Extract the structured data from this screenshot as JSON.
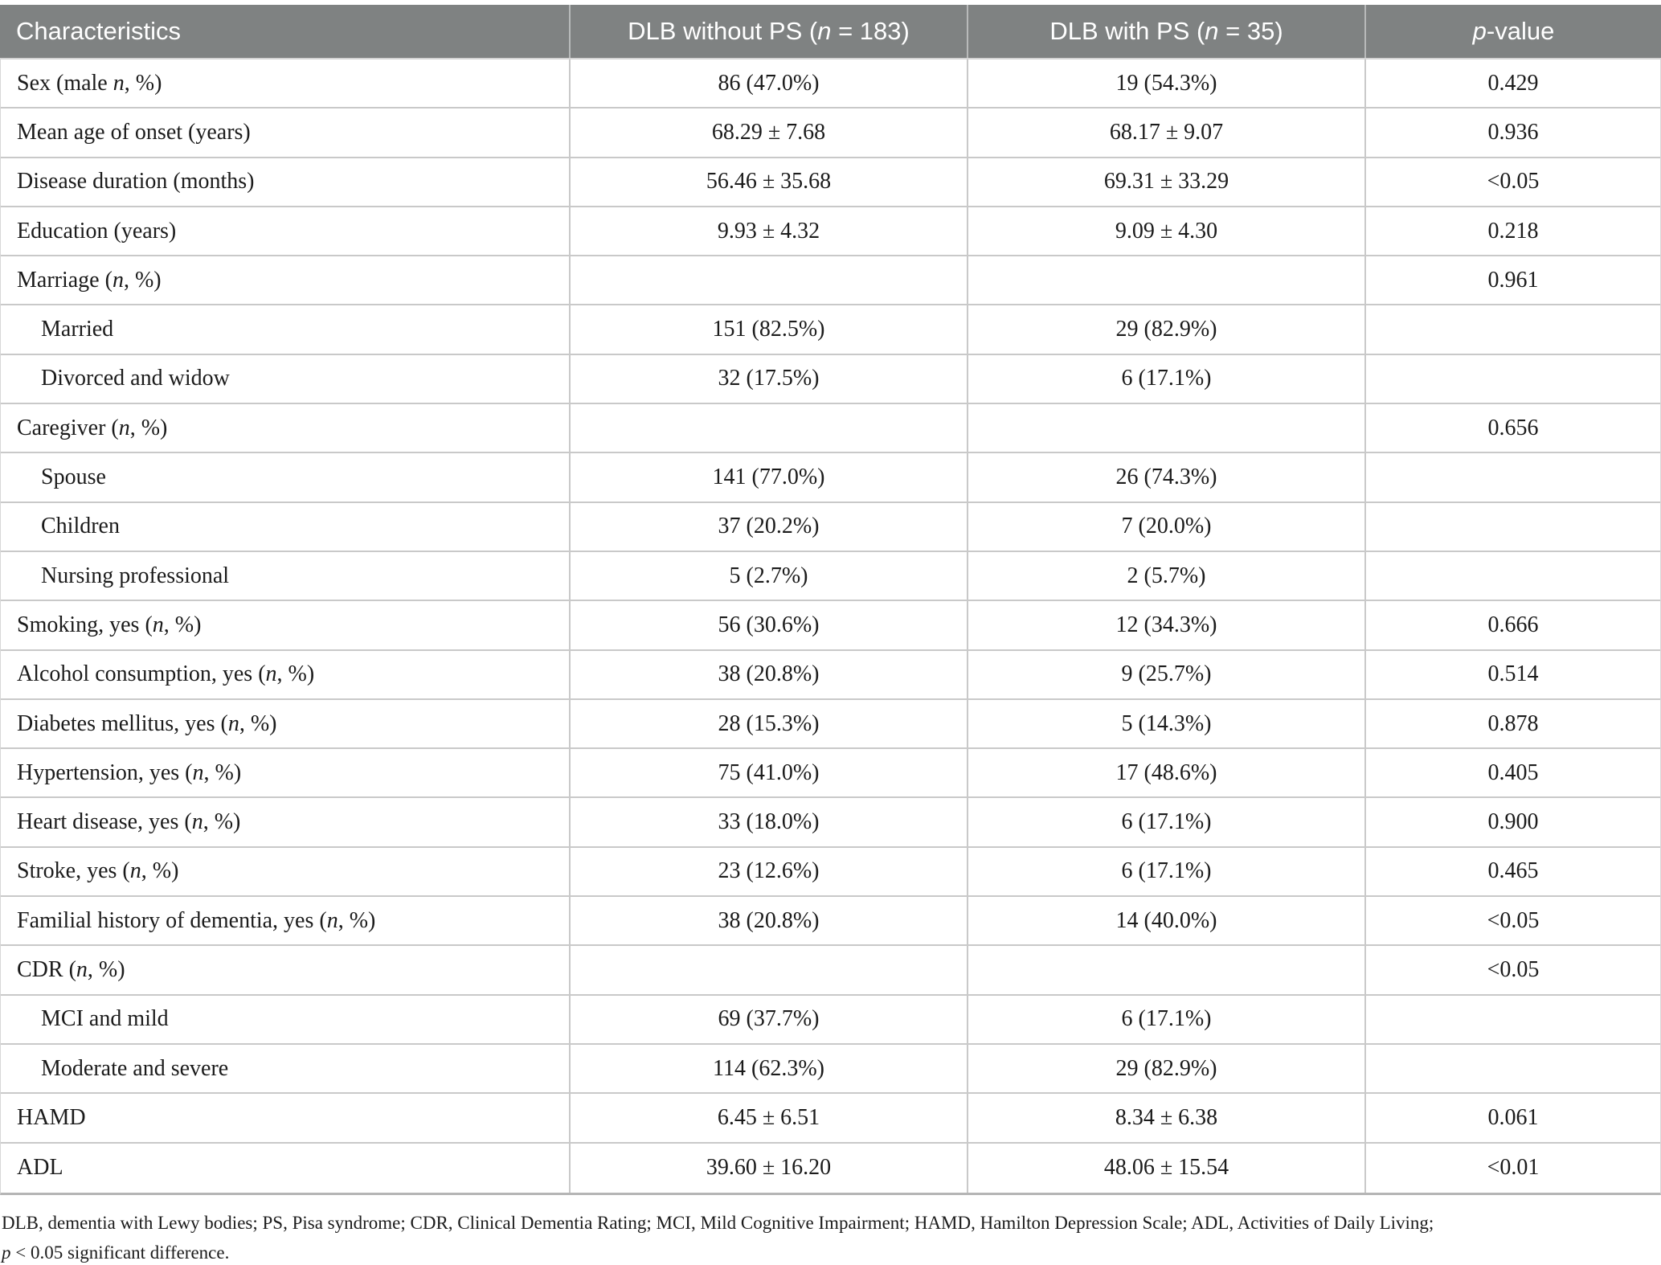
{
  "colors": {
    "header_bg": "#7f8282",
    "header_text": "#ffffff",
    "body_text": "#1b1b1b",
    "grid_line": "#c9c9c9"
  },
  "table": {
    "header": {
      "col1": "Characteristics",
      "col2_pre": "DLB without PS (",
      "col2_var": "n",
      "col2_post": " = 183)",
      "col3_pre": "DLB with PS (",
      "col3_var": "n",
      "col3_post": " = 35)",
      "col4_var": "p",
      "col4_post": "-value"
    },
    "rows": [
      {
        "label_pre": "Sex (male ",
        "label_var": "n",
        "label_post": ", %)",
        "indent": false,
        "without_ps": "86 (47.0%)",
        "with_ps": "19 (54.3%)",
        "p_value": "0.429"
      },
      {
        "label_pre": "Mean age of onset (years)",
        "label_var": "",
        "label_post": "",
        "indent": false,
        "without_ps": "68.29 ± 7.68",
        "with_ps": "68.17 ± 9.07",
        "p_value": "0.936"
      },
      {
        "label_pre": "Disease duration (months)",
        "label_var": "",
        "label_post": "",
        "indent": false,
        "without_ps": "56.46 ± 35.68",
        "with_ps": "69.31 ± 33.29",
        "p_value": "<0.05"
      },
      {
        "label_pre": "Education (years)",
        "label_var": "",
        "label_post": "",
        "indent": false,
        "without_ps": "9.93 ± 4.32",
        "with_ps": "9.09 ± 4.30",
        "p_value": "0.218"
      },
      {
        "label_pre": "Marriage (",
        "label_var": "n",
        "label_post": ", %)",
        "indent": false,
        "without_ps": "",
        "with_ps": "",
        "p_value": "0.961"
      },
      {
        "label_pre": "Married",
        "label_var": "",
        "label_post": "",
        "indent": true,
        "without_ps": "151 (82.5%)",
        "with_ps": "29 (82.9%)",
        "p_value": ""
      },
      {
        "label_pre": "Divorced and widow",
        "label_var": "",
        "label_post": "",
        "indent": true,
        "without_ps": "32 (17.5%)",
        "with_ps": "6 (17.1%)",
        "p_value": ""
      },
      {
        "label_pre": "Caregiver (",
        "label_var": "n",
        "label_post": ", %)",
        "indent": false,
        "without_ps": "",
        "with_ps": "",
        "p_value": "0.656"
      },
      {
        "label_pre": "Spouse",
        "label_var": "",
        "label_post": "",
        "indent": true,
        "without_ps": "141 (77.0%)",
        "with_ps": "26 (74.3%)",
        "p_value": ""
      },
      {
        "label_pre": "Children",
        "label_var": "",
        "label_post": "",
        "indent": true,
        "without_ps": "37 (20.2%)",
        "with_ps": "7 (20.0%)",
        "p_value": ""
      },
      {
        "label_pre": "Nursing professional",
        "label_var": "",
        "label_post": "",
        "indent": true,
        "without_ps": "5 (2.7%)",
        "with_ps": "2 (5.7%)",
        "p_value": ""
      },
      {
        "label_pre": "Smoking, yes (",
        "label_var": "n",
        "label_post": ", %)",
        "indent": false,
        "without_ps": "56 (30.6%)",
        "with_ps": "12 (34.3%)",
        "p_value": "0.666"
      },
      {
        "label_pre": "Alcohol consumption, yes (",
        "label_var": "n",
        "label_post": ", %)",
        "indent": false,
        "without_ps": "38 (20.8%)",
        "with_ps": "9 (25.7%)",
        "p_value": "0.514"
      },
      {
        "label_pre": "Diabetes mellitus, yes (",
        "label_var": "n",
        "label_post": ", %)",
        "indent": false,
        "without_ps": "28 (15.3%)",
        "with_ps": "5 (14.3%)",
        "p_value": "0.878"
      },
      {
        "label_pre": "Hypertension, yes (",
        "label_var": "n",
        "label_post": ", %)",
        "indent": false,
        "without_ps": "75 (41.0%)",
        "with_ps": "17 (48.6%)",
        "p_value": "0.405"
      },
      {
        "label_pre": "Heart disease, yes (",
        "label_var": "n",
        "label_post": ", %)",
        "indent": false,
        "without_ps": "33 (18.0%)",
        "with_ps": "6 (17.1%)",
        "p_value": "0.900"
      },
      {
        "label_pre": "Stroke, yes (",
        "label_var": "n",
        "label_post": ", %)",
        "indent": false,
        "without_ps": "23 (12.6%)",
        "with_ps": "6 (17.1%)",
        "p_value": "0.465"
      },
      {
        "label_pre": "Familial history of dementia, yes (",
        "label_var": "n",
        "label_post": ", %)",
        "indent": false,
        "without_ps": "38 (20.8%)",
        "with_ps": "14 (40.0%)",
        "p_value": "<0.05"
      },
      {
        "label_pre": "CDR (",
        "label_var": "n",
        "label_post": ", %)",
        "indent": false,
        "without_ps": "",
        "with_ps": "",
        "p_value": "<0.05"
      },
      {
        "label_pre": "MCI and mild",
        "label_var": "",
        "label_post": "",
        "indent": true,
        "without_ps": "69 (37.7%)",
        "with_ps": "6 (17.1%)",
        "p_value": ""
      },
      {
        "label_pre": "Moderate and severe",
        "label_var": "",
        "label_post": "",
        "indent": true,
        "without_ps": "114 (62.3%)",
        "with_ps": "29 (82.9%)",
        "p_value": ""
      },
      {
        "label_pre": "HAMD",
        "label_var": "",
        "label_post": "",
        "indent": false,
        "without_ps": "6.45 ± 6.51",
        "with_ps": "8.34 ± 6.38",
        "p_value": "0.061"
      },
      {
        "label_pre": "ADL",
        "label_var": "",
        "label_post": "",
        "indent": false,
        "without_ps": "39.60 ± 16.20",
        "with_ps": "48.06 ± 15.54",
        "p_value": "<0.01"
      }
    ],
    "footnote": {
      "line1": "DLB, dementia with Lewy bodies; PS, Pisa syndrome; CDR, Clinical Dementia Rating; MCI, Mild Cognitive Impairment; HAMD, Hamilton Depression Scale; ADL, Activities of Daily Living;",
      "line2_var": "p",
      "line2_post": " < 0.05 significant difference."
    }
  }
}
